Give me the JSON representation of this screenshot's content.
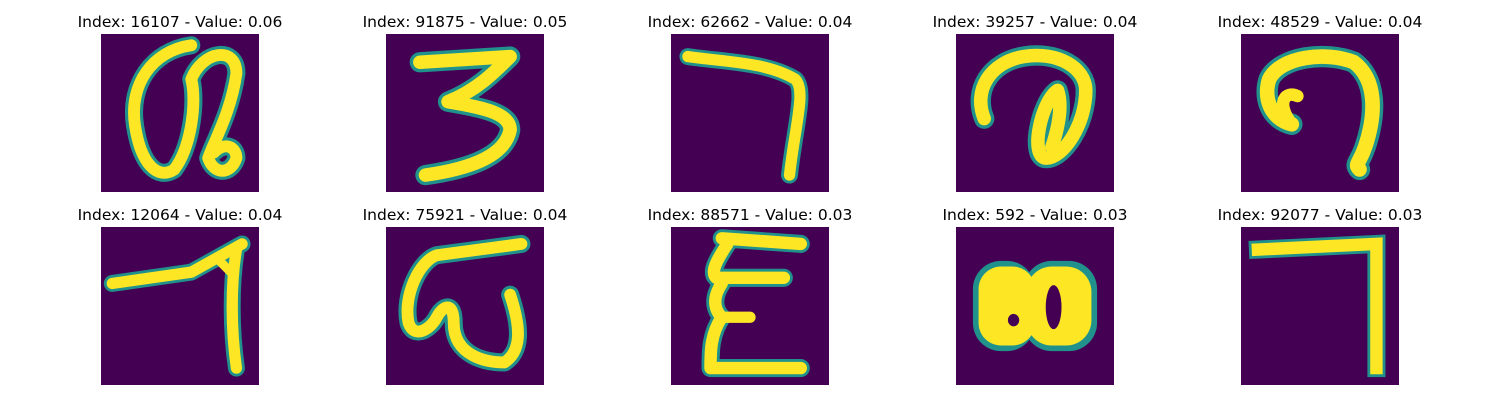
{
  "background_color": "#440154",
  "stroke_color": "#fde725",
  "edge_colors": [
    "#22a884",
    "#2a788e"
  ],
  "panels": [
    {
      "title": "Index: 16107 - Value: 0.06",
      "glyph": "alpha-like"
    },
    {
      "title": "Index: 91875 - Value: 0.05",
      "glyph": "three"
    },
    {
      "title": "Index: 62662 - Value: 0.04",
      "glyph": "seven"
    },
    {
      "title": "Index: 39257 - Value: 0.04",
      "glyph": "swirl"
    },
    {
      "title": "Index: 48529 - Value: 0.04",
      "glyph": "hook"
    },
    {
      "title": "Index: 12064 - Value: 0.04",
      "glyph": "seven-crossed"
    },
    {
      "title": "Index: 75921 - Value: 0.04",
      "glyph": "omega-like"
    },
    {
      "title": "Index: 88571 - Value: 0.03",
      "glyph": "sigma-like"
    },
    {
      "title": "Index: 592 - Value: 0.03",
      "glyph": "double-loop"
    },
    {
      "title": "Index: 92077 - Value: 0.03",
      "glyph": "right-angle"
    }
  ]
}
